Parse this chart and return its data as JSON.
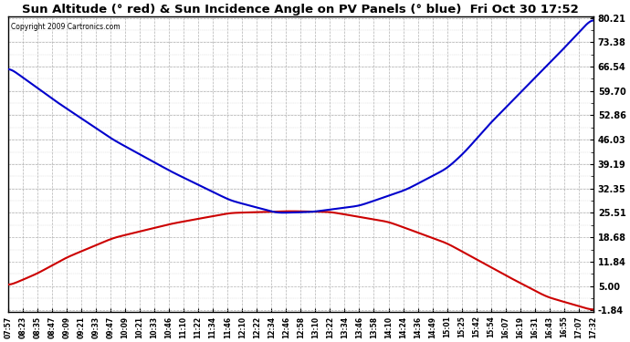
{
  "title": "Sun Altitude (° red) & Sun Incidence Angle on PV Panels (° blue)  Fri Oct 30 17:52",
  "copyright_text": "Copyright 2009 Cartronics.com",
  "yticks": [
    80.21,
    73.38,
    66.54,
    59.7,
    52.86,
    46.03,
    39.19,
    32.35,
    25.51,
    18.68,
    11.84,
    5.0,
    -1.84
  ],
  "ymin": -1.84,
  "ymax": 80.21,
  "background_color": "#ffffff",
  "plot_bg_color": "#ffffff",
  "grid_color": "#aaaaaa",
  "red_line_color": "#cc0000",
  "blue_line_color": "#0000cc",
  "title_fontsize": 9.5,
  "x_labels": [
    "07:57",
    "08:23",
    "08:35",
    "08:47",
    "09:09",
    "09:21",
    "09:33",
    "09:47",
    "10:09",
    "10:21",
    "10:33",
    "10:46",
    "11:10",
    "11:22",
    "11:34",
    "11:46",
    "12:10",
    "12:22",
    "12:34",
    "12:46",
    "12:58",
    "13:10",
    "13:22",
    "13:34",
    "13:46",
    "13:58",
    "14:10",
    "14:24",
    "14:36",
    "14:49",
    "15:01",
    "15:25",
    "15:42",
    "15:54",
    "16:07",
    "16:19",
    "16:31",
    "16:43",
    "16:55",
    "17:07",
    "17:32"
  ],
  "red_control_x": [
    0.0,
    0.05,
    0.1,
    0.18,
    0.28,
    0.38,
    0.48,
    0.55,
    0.65,
    0.75,
    0.85,
    0.92,
    1.0
  ],
  "red_control_y": [
    5.0,
    8.5,
    13.0,
    18.5,
    22.5,
    25.5,
    26.0,
    25.8,
    23.0,
    17.0,
    8.0,
    2.0,
    -1.84
  ],
  "blue_control_x": [
    0.0,
    0.08,
    0.18,
    0.28,
    0.38,
    0.46,
    0.52,
    0.6,
    0.68,
    0.75,
    0.78,
    0.82,
    0.88,
    0.94,
    1.0
  ],
  "blue_control_y": [
    66.5,
    57.0,
    46.0,
    37.0,
    29.0,
    25.5,
    25.8,
    27.5,
    32.0,
    38.0,
    42.5,
    50.0,
    60.0,
    70.0,
    80.5
  ]
}
